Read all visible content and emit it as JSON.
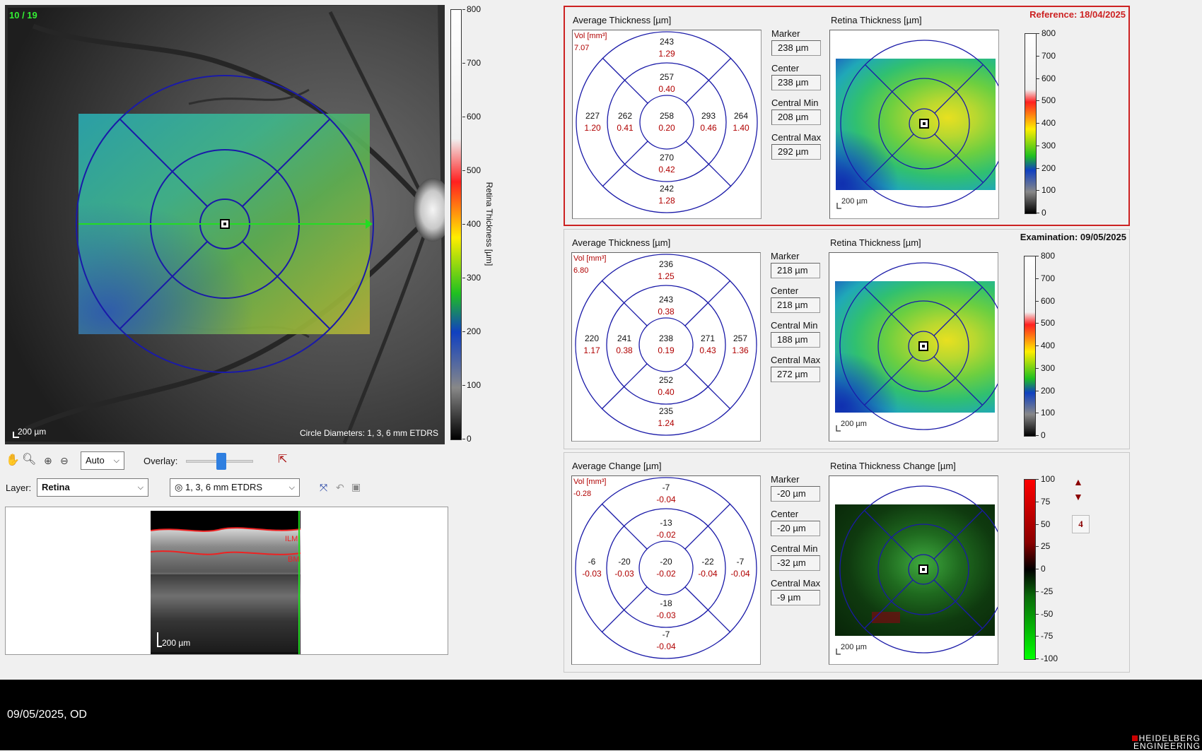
{
  "fundus": {
    "counter": "10 / 19",
    "scale_label": "200 µm",
    "circle_label": "Circle Diameters: 1, 3, 6 mm ETDRS",
    "colorbar_title": "Retina Thickness [µm]",
    "colorbar_ticks": [
      "800",
      "700",
      "600",
      "500",
      "400",
      "300",
      "200",
      "100",
      "0"
    ]
  },
  "toolbar": {
    "zoom_select": "Auto",
    "overlay_label": "Overlay:",
    "overlay_level": 0.52,
    "layer_label": "Layer:",
    "layer_select": "Retina",
    "grid_select": "1, 3, 6 mm ETDRS",
    "icons": [
      "hand-icon",
      "magnifier-icon",
      "zoom-in-icon",
      "zoom-out-icon",
      "pointer-icon",
      "fit-icon",
      "undo-icon",
      "save-icon"
    ]
  },
  "bscan": {
    "scale_label": "200 µm",
    "ilm_label": "ILM",
    "bm_label": "BM"
  },
  "reference": {
    "header": "Reference: 18/04/2025",
    "grid_title": "Average Thickness [µm]",
    "map_title": "Retina Thickness [µm]",
    "vol_label": "Vol [mm³]",
    "vol_value": "7.07",
    "sectors": {
      "outer_top": [
        "243",
        "1.29"
      ],
      "inner_top": [
        "257",
        "0.40"
      ],
      "outer_left": [
        "227",
        "1.20"
      ],
      "inner_left": [
        "262",
        "0.41"
      ],
      "center": [
        "258",
        "0.20"
      ],
      "inner_right": [
        "293",
        "0.46"
      ],
      "outer_right": [
        "264",
        "1.40"
      ],
      "inner_bottom": [
        "270",
        "0.42"
      ],
      "outer_bottom": [
        "242",
        "1.28"
      ]
    },
    "marker_label": "Marker",
    "marker": "238 µm",
    "center_label": "Center",
    "center": "238 µm",
    "cmin_label": "Central Min",
    "cmin": "208 µm",
    "cmax_label": "Central Max",
    "cmax": "292 µm",
    "map_scale": "200 µm",
    "colorbar_ticks": [
      "800",
      "700",
      "600",
      "500",
      "400",
      "300",
      "200",
      "100",
      "0"
    ]
  },
  "examination": {
    "header": "Examination: 09/05/2025",
    "grid_title": "Average Thickness [µm]",
    "map_title": "Retina Thickness [µm]",
    "vol_label": "Vol [mm³]",
    "vol_value": "6.80",
    "sectors": {
      "outer_top": [
        "236",
        "1.25"
      ],
      "inner_top": [
        "243",
        "0.38"
      ],
      "outer_left": [
        "220",
        "1.17"
      ],
      "inner_left": [
        "241",
        "0.38"
      ],
      "center": [
        "238",
        "0.19"
      ],
      "inner_right": [
        "271",
        "0.43"
      ],
      "outer_right": [
        "257",
        "1.36"
      ],
      "inner_bottom": [
        "252",
        "0.40"
      ],
      "outer_bottom": [
        "235",
        "1.24"
      ]
    },
    "marker_label": "Marker",
    "marker": "218 µm",
    "center_label": "Center",
    "center": "218 µm",
    "cmin_label": "Central Min",
    "cmin": "188 µm",
    "cmax_label": "Central Max",
    "cmax": "272 µm",
    "map_scale": "200 µm",
    "colorbar_ticks": [
      "800",
      "700",
      "600",
      "500",
      "400",
      "300",
      "200",
      "100",
      "0"
    ]
  },
  "change": {
    "grid_title": "Average Change [µm]",
    "map_title": "Retina Thickness Change [µm]",
    "vol_label": "Vol [mm³]",
    "vol_value": "-0.28",
    "sectors": {
      "outer_top": [
        "-7",
        "-0.04"
      ],
      "inner_top": [
        "-13",
        "-0.02"
      ],
      "outer_left": [
        "-6",
        "-0.03"
      ],
      "inner_left": [
        "-20",
        "-0.03"
      ],
      "center": [
        "-20",
        "-0.02"
      ],
      "inner_right": [
        "-22",
        "-0.04"
      ],
      "outer_right": [
        "-7",
        "-0.04"
      ],
      "inner_bottom": [
        "-18",
        "-0.03"
      ],
      "outer_bottom": [
        "-7",
        "-0.04"
      ]
    },
    "marker_label": "Marker",
    "marker": "-20 µm",
    "center_label": "Center",
    "center": "-20 µm",
    "cmin_label": "Central Min",
    "cmin": "-32 µm",
    "cmax_label": "Central Max",
    "cmax": "-9 µm",
    "map_scale": "200 µm",
    "colorbar_ticks": [
      "100",
      "75",
      "50",
      "25",
      "0",
      "-25",
      "-50",
      "-75",
      "-100"
    ],
    "step_value": "4"
  },
  "footer": {
    "date_eye": "09/05/2025, OD",
    "logo_line1": "HEIDELBERG",
    "logo_line2": "ENGINEERING"
  },
  "colors": {
    "grid_blue": "#1a1aa8",
    "value_red": "#b00000",
    "reference_border": "#cc2222",
    "scan_line": "#22dd22"
  }
}
